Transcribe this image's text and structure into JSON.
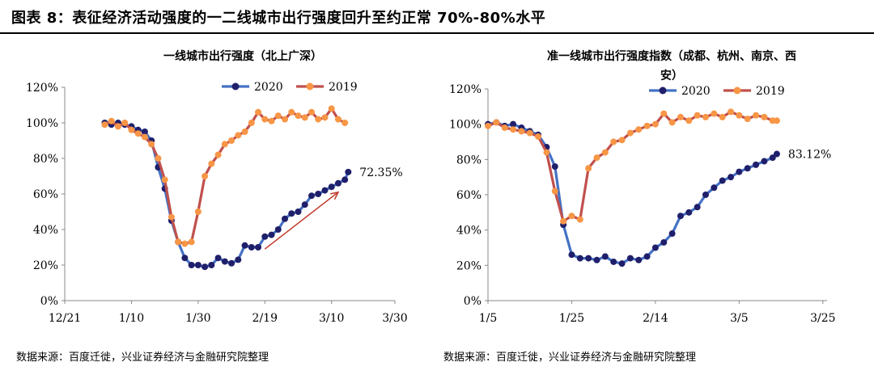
{
  "figure_title": "图表 8：表征经济活动强度的一二线城市出行强度回升至约正常 70%-80%水平",
  "sources": [
    "数据来源：百度迁徙，兴业证券经济与金融研究院整理",
    "数据来源：百度迁徙，兴业证券经济与金融研究院整理"
  ],
  "colors": {
    "s2020": "#4472C4",
    "s2020_marker": "#1F1F6B",
    "s2019": "#C0504D",
    "s2019_marker": "#F79646",
    "arrow": "#C0392B"
  },
  "chart_data": [
    {
      "type": "line",
      "title": "一线城市出行强度（北上广深）",
      "ylim": [
        0,
        120
      ],
      "yticks": [
        "0%",
        "20%",
        "40%",
        "60%",
        "80%",
        "100%",
        "120%"
      ],
      "xlim": [
        0,
        99
      ],
      "xticks": [
        {
          "x": 0,
          "label": "12/21"
        },
        {
          "x": 20,
          "label": "1/10"
        },
        {
          "x": 40,
          "label": "1/30"
        },
        {
          "x": 60,
          "label": "2/19"
        },
        {
          "x": 80,
          "label": "3/10"
        },
        {
          "x": 99,
          "label": "3/30"
        }
      ],
      "annotation": {
        "text": "72.35%",
        "x": 85,
        "y": 72.35
      },
      "arrow": {
        "from": [
          60,
          29
        ],
        "to": [
          82,
          61
        ]
      },
      "series": [
        {
          "name": "2020",
          "x": [
            12,
            14,
            16,
            18,
            20,
            22,
            24,
            26,
            28,
            30,
            32,
            34,
            36,
            38,
            40,
            42,
            44,
            46,
            48,
            50,
            52,
            54,
            56,
            58,
            60,
            62,
            64,
            66,
            68,
            70,
            72,
            74,
            76,
            78,
            80,
            82,
            84,
            85
          ],
          "y": [
            100,
            99,
            100,
            99,
            98,
            96,
            95,
            90,
            75,
            63,
            45,
            33,
            24,
            20,
            20,
            19,
            20,
            24,
            22,
            21,
            23,
            31,
            30,
            30,
            36,
            37,
            40,
            46,
            49,
            50,
            54,
            59,
            60,
            62,
            64,
            66,
            68,
            72.35
          ]
        },
        {
          "name": "2019",
          "x": [
            12,
            14,
            16,
            18,
            20,
            22,
            24,
            26,
            28,
            30,
            32,
            34,
            36,
            38,
            40,
            42,
            44,
            46,
            48,
            50,
            52,
            54,
            56,
            58,
            60,
            62,
            64,
            66,
            68,
            70,
            72,
            74,
            76,
            78,
            80,
            82,
            84
          ],
          "y": [
            99,
            101,
            98,
            100,
            96,
            94,
            92,
            88,
            80,
            68,
            47,
            33,
            32,
            33,
            50,
            70,
            77,
            82,
            88,
            90,
            93,
            95,
            100,
            106,
            102,
            101,
            104,
            102,
            106,
            104,
            103,
            106,
            102,
            103,
            108,
            102,
            100
          ]
        }
      ]
    },
    {
      "type": "line",
      "title": "准一线城市出行强度指数（成都、杭州、南京、西安）",
      "ylim": [
        0,
        120
      ],
      "yticks": [
        "0%",
        "20%",
        "40%",
        "60%",
        "80%",
        "100%",
        "120%"
      ],
      "xlim": [
        0,
        81
      ],
      "xticks": [
        {
          "x": 0,
          "label": "1/5"
        },
        {
          "x": 20,
          "label": "1/25"
        },
        {
          "x": 40,
          "label": "2/14"
        },
        {
          "x": 60,
          "label": "3/5"
        },
        {
          "x": 80,
          "label": "3/25"
        }
      ],
      "annotation": {
        "text": "83.12%",
        "x": 69,
        "y": 83.12
      },
      "series": [
        {
          "name": "2020",
          "x": [
            0,
            2,
            4,
            6,
            8,
            10,
            12,
            14,
            16,
            18,
            20,
            22,
            24,
            26,
            28,
            30,
            32,
            34,
            36,
            38,
            40,
            42,
            44,
            46,
            48,
            50,
            52,
            54,
            56,
            58,
            60,
            62,
            64,
            66,
            68,
            69
          ],
          "y": [
            100,
            101,
            99,
            100,
            98,
            96,
            94,
            87,
            76,
            43,
            26,
            24,
            24,
            23,
            25,
            22,
            21,
            24,
            23,
            25,
            30,
            33,
            38,
            48,
            50,
            53,
            60,
            64,
            68,
            70,
            73,
            75,
            77,
            79,
            81,
            83.12
          ]
        },
        {
          "name": "2019",
          "x": [
            0,
            2,
            4,
            6,
            8,
            10,
            12,
            14,
            16,
            18,
            20,
            22,
            24,
            26,
            28,
            30,
            32,
            34,
            36,
            38,
            40,
            42,
            44,
            46,
            48,
            50,
            52,
            54,
            56,
            58,
            60,
            62,
            64,
            66,
            68,
            69
          ],
          "y": [
            99,
            101,
            98,
            97,
            96,
            95,
            93,
            84,
            62,
            45,
            48,
            46,
            75,
            81,
            84,
            90,
            91,
            95,
            97,
            99,
            100,
            106,
            101,
            104,
            102,
            105,
            104,
            106,
            104,
            107,
            105,
            103,
            105,
            104,
            102,
            102
          ]
        }
      ]
    }
  ]
}
